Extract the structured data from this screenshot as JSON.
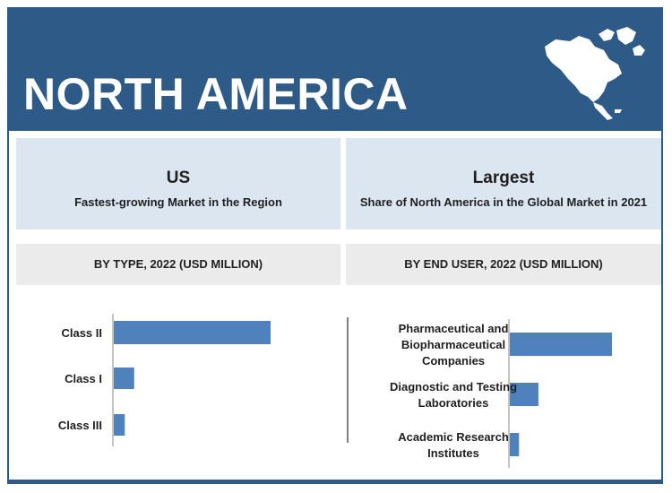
{
  "header": {
    "title": "NORTH AMERICA",
    "map_icon": "north-america-map-icon"
  },
  "highlights": [
    {
      "headline": "US",
      "caption": "Fastest-growing Market in the Region"
    },
    {
      "headline": "Largest",
      "caption": "Share of North America in the Global Market in 2021"
    }
  ],
  "colors": {
    "banner": "#2e5a87",
    "bar": "#4f81bd",
    "panel": "#dce6f1",
    "section_head": "#ebebeb"
  },
  "chart_data": [
    {
      "type": "bar",
      "orientation": "horizontal",
      "title": "BY TYPE, 2022 (USD MILLION)",
      "categories": [
        "Class II",
        "Class I",
        "Class III"
      ],
      "values": [
        100,
        13,
        7
      ],
      "xlim": [
        0,
        100
      ]
    },
    {
      "type": "bar",
      "orientation": "horizontal",
      "title": "BY END USER, 2022 (USD MILLION)",
      "categories": [
        [
          "Pharmaceutical and",
          "Biopharmaceutical",
          "Companies"
        ],
        [
          "Diagnostic and Testing",
          "Laboratories"
        ],
        [
          "Academic Research",
          "Institutes"
        ]
      ],
      "values": [
        100,
        28,
        9
      ],
      "xlim": [
        0,
        100
      ]
    }
  ]
}
